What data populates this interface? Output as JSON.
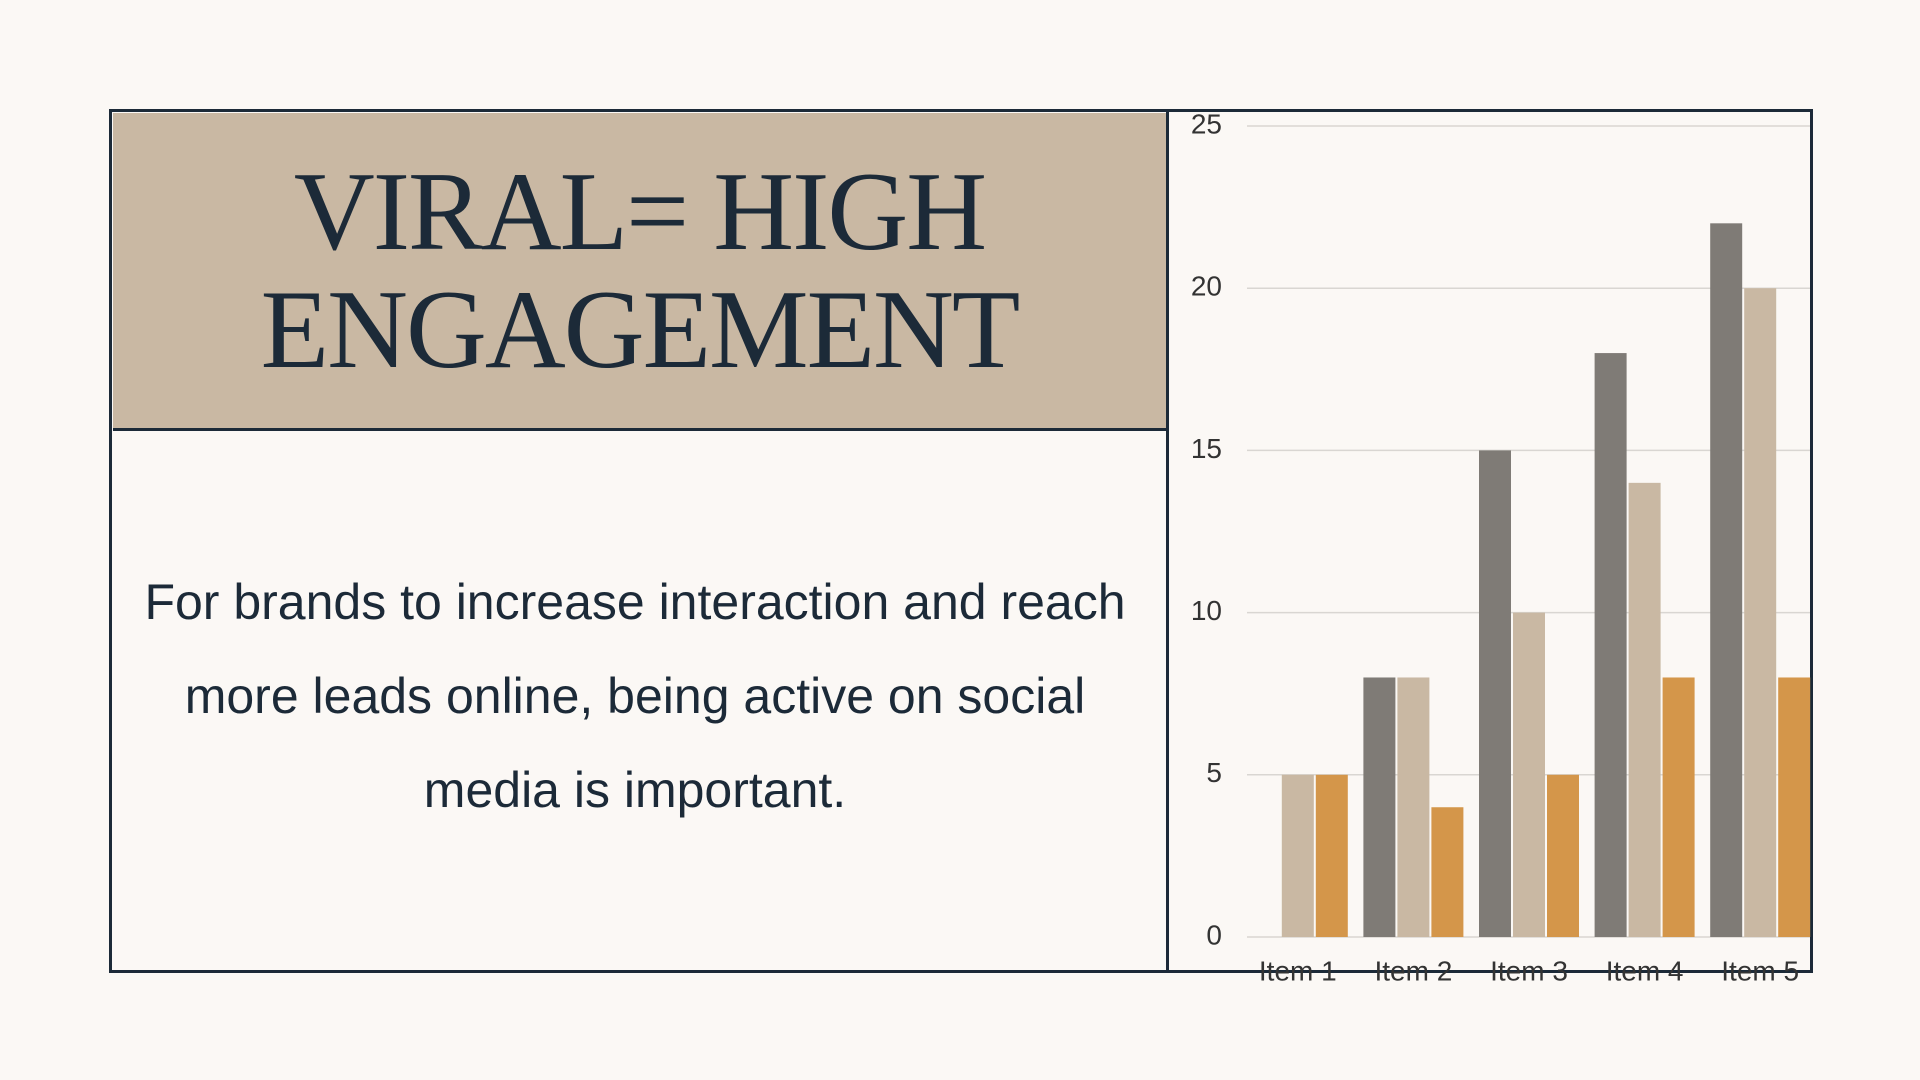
{
  "header": {
    "title": "VIRAL= HIGH ENGAGEMENT"
  },
  "body": {
    "text": "For brands to increase interaction and reach more leads online, being active on social media is important."
  },
  "chart_data": {
    "type": "bar",
    "categories": [
      "Item 1",
      "Item 2",
      "Item 3",
      "Item 4",
      "Item 5"
    ],
    "series": [
      {
        "color": "#7f7b76",
        "values": [
          0,
          8,
          15,
          18,
          22
        ]
      },
      {
        "color": "#c9b8a3",
        "values": [
          5,
          8,
          10,
          14,
          20
        ]
      },
      {
        "color": "#d4964a",
        "values": [
          5,
          4,
          5,
          8,
          8
        ]
      }
    ],
    "ylim": [
      0,
      25
    ],
    "yticks": [
      0,
      5,
      10,
      15,
      20,
      25
    ],
    "grid": true
  }
}
